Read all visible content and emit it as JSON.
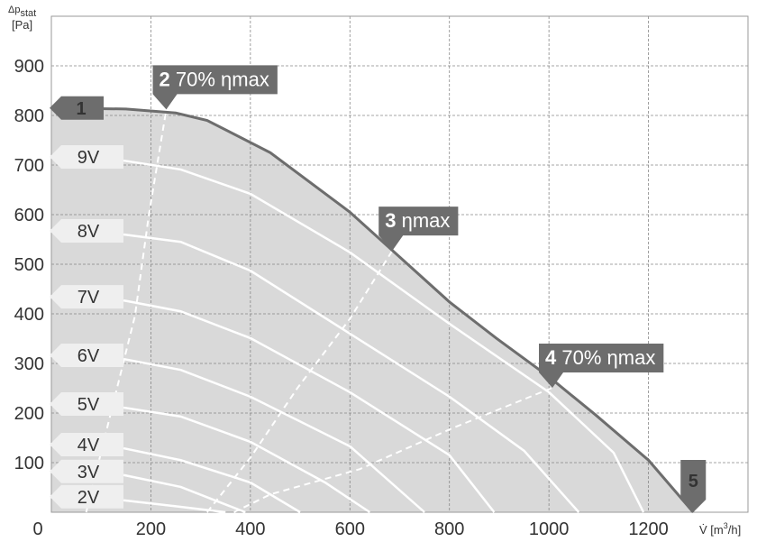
{
  "chart_data": {
    "type": "line",
    "y_label": {
      "symbol": "Δp",
      "subscript": "stat",
      "unit": "[Pa]"
    },
    "x_label": {
      "before": "V̇ [m",
      "superscript": "3",
      "after": "/h]"
    },
    "xlim": [
      0,
      1400
    ],
    "ylim": [
      0,
      1000
    ],
    "xticks": [
      0,
      200,
      400,
      600,
      800,
      1000,
      1200
    ],
    "yticks": [
      100,
      200,
      300,
      400,
      500,
      600,
      700,
      800,
      900
    ],
    "grid": true,
    "main_curve": {
      "color": "#6d6d6d",
      "fill": "#d9d9d9",
      "start_label": "1",
      "end_label": "5",
      "x": [
        0,
        150,
        250,
        313,
        440,
        600,
        694,
        800,
        894,
        1000,
        1094,
        1200,
        1290
      ],
      "values": [
        815,
        813,
        805,
        790,
        725,
        605,
        520,
        424,
        351,
        273,
        196,
        105,
        0
      ]
    },
    "series": [
      {
        "name": "9V",
        "color": "#ffffff",
        "x": [
          145,
          260,
          400,
          600,
          800,
          1000,
          1130,
          1190
        ],
        "values": [
          709,
          691,
          642,
          524,
          380,
          242,
          120,
          0
        ]
      },
      {
        "name": "8V",
        "color": "#ffffff",
        "x": [
          145,
          260,
          400,
          600,
          800,
          950,
          1060
        ],
        "values": [
          560,
          545,
          487,
          360,
          233,
          124,
          0
        ]
      },
      {
        "name": "7V",
        "color": "#ffffff",
        "x": [
          145,
          260,
          400,
          600,
          800,
          890
        ],
        "values": [
          427,
          405,
          351,
          242,
          115,
          0
        ]
      },
      {
        "name": "6V",
        "color": "#ffffff",
        "x": [
          145,
          260,
          400,
          600,
          750
        ],
        "values": [
          309,
          287,
          233,
          133,
          0
        ]
      },
      {
        "name": "5V",
        "color": "#ffffff",
        "x": [
          145,
          260,
          400,
          550,
          640
        ],
        "values": [
          211,
          193,
          142,
          60,
          0
        ]
      },
      {
        "name": "4V",
        "color": "#ffffff",
        "x": [
          145,
          260,
          400,
          500
        ],
        "values": [
          129,
          105,
          60,
          0
        ]
      },
      {
        "name": "3V",
        "color": "#ffffff",
        "x": [
          145,
          260,
          390
        ],
        "values": [
          75,
          51,
          0
        ]
      },
      {
        "name": "2V",
        "color": "#ffffff",
        "x": [
          145,
          250,
          350
        ],
        "values": [
          24,
          12,
          0
        ]
      }
    ],
    "efficiency_lines": [
      {
        "number": "2",
        "label": "70% ηmax",
        "x": [
          70,
          168,
          196,
          231
        ],
        "values": [
          0,
          396,
          600,
          812
        ]
      },
      {
        "number": "3",
        "label": "ηmax",
        "x": [
          313,
          400,
          495,
          600,
          685
        ],
        "values": [
          0,
          110,
          251,
          390,
          527
        ]
      },
      {
        "number": "4",
        "label": "70% ηmax",
        "x": [
          367,
          440,
          620,
          805,
          1007
        ],
        "values": [
          0,
          36,
          87,
          169,
          251
        ]
      }
    ]
  }
}
